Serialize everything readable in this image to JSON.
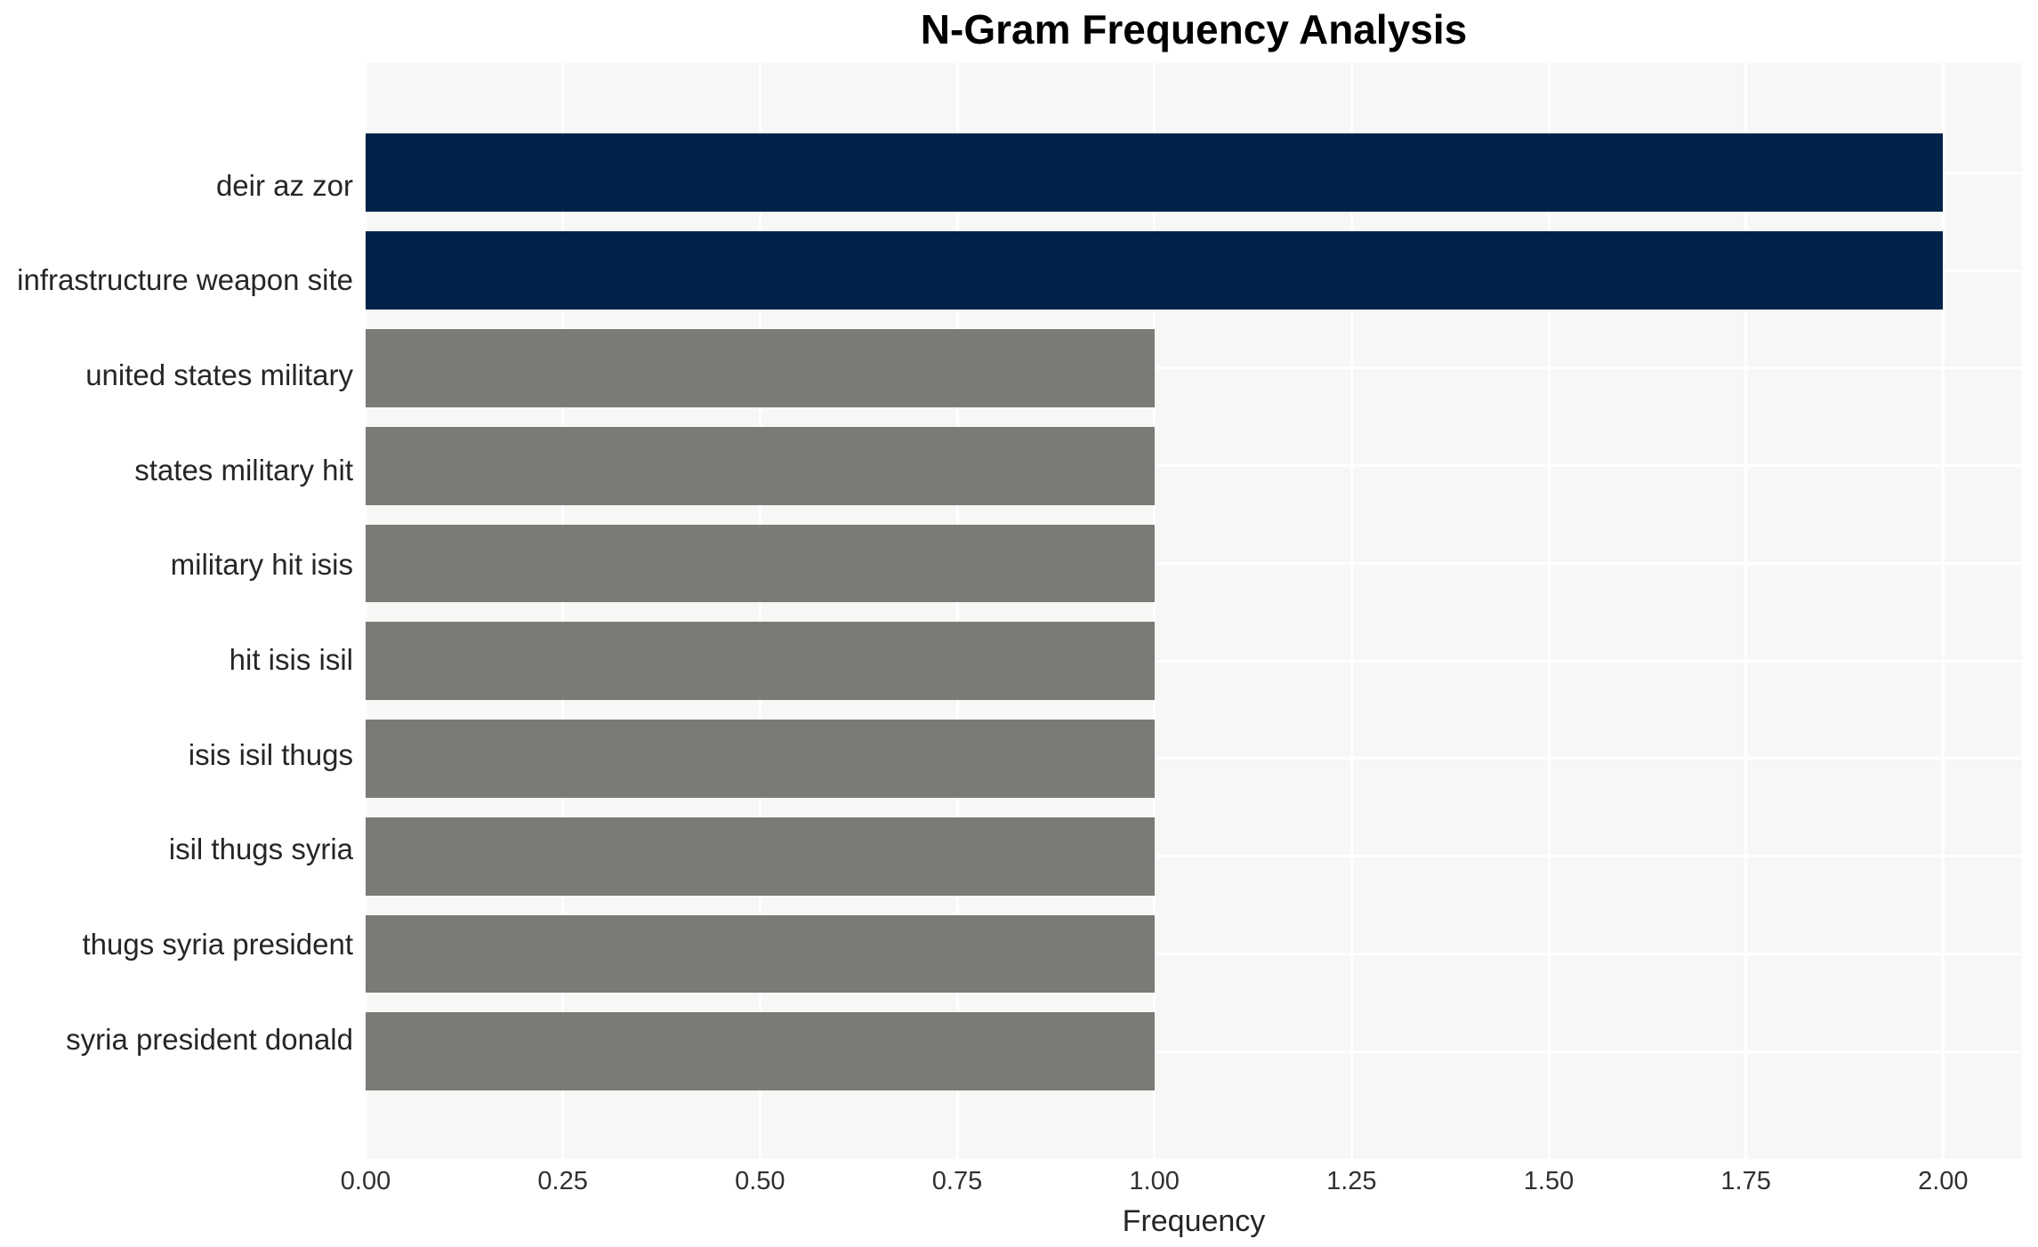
{
  "chart_data": {
    "type": "bar",
    "orientation": "horizontal",
    "title": "N-Gram Frequency Analysis",
    "xlabel": "Frequency",
    "ylabel": "",
    "categories": [
      "deir az zor",
      "infrastructure weapon site",
      "united states military",
      "states military hit",
      "military hit isis",
      "hit isis isil",
      "isis isil thugs",
      "isil thugs syria",
      "thugs syria president",
      "syria president donald"
    ],
    "values": [
      2,
      2,
      1,
      1,
      1,
      1,
      1,
      1,
      1,
      1
    ],
    "bar_colors": [
      "#022349",
      "#022349",
      "#7a7a76",
      "#7a7a76",
      "#7a7a76",
      "#7a7a76",
      "#7a7a76",
      "#7a7a76",
      "#7a7a76",
      "#7a7a76"
    ],
    "xtick_labels": [
      "0.00",
      "0.25",
      "0.50",
      "0.75",
      "1.00",
      "1.25",
      "1.50",
      "1.75",
      "2.00"
    ],
    "xtick_values": [
      0,
      0.25,
      0.5,
      0.75,
      1.0,
      1.25,
      1.5,
      1.75,
      2.0
    ],
    "xlim": [
      0,
      2.1
    ],
    "grid": true,
    "legend_position": "none",
    "colors": {
      "highlight_bar": "#022349",
      "regular_bar": "#7a7a76",
      "plot_background": "#f7f7f6",
      "gridline": "#ffffff",
      "page_background": "#ffffff",
      "title_text": "#000000",
      "tick_text": "#303030",
      "category_text": "#262626"
    }
  }
}
